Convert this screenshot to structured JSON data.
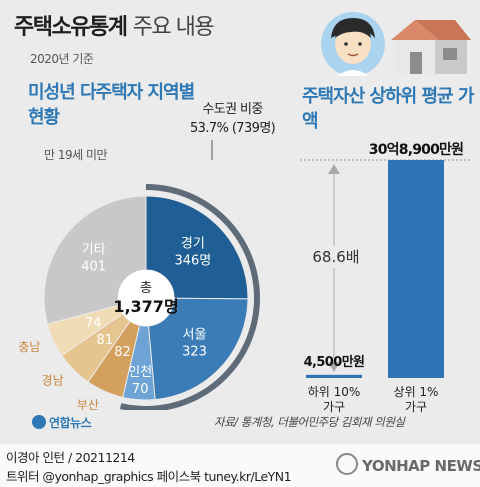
{
  "header": {
    "title_bold": "주택소유통계",
    "title_light": "주요 내용",
    "subtitle": "2020년 기준"
  },
  "left": {
    "heading": "미성년 다주택자 지역별 현황",
    "note": "만 19세 미만",
    "capital_label": "수도권 비중",
    "capital_value": "53.7% (739명)",
    "total_label": "총",
    "total_value": "1,377명"
  },
  "right": {
    "heading": "주택자산 상하위 평균 가액",
    "top_value": "30억8,900만원",
    "bottom_value": "4,500만원",
    "ratio": "68.6배"
  },
  "colors": {
    "accent": "#2d78b5",
    "dark_blue": "#1f5f96",
    "mid_blue": "#3b7cb6",
    "light_blue": "#6da3d5",
    "gray": "#c8c8c8",
    "tan_light": "#f0dcb4",
    "tan_mid": "#e6c490",
    "tan_dark": "#d4a05e",
    "bar": "#2f73b4"
  },
  "chart_data": [
    {
      "type": "pie",
      "title": "미성년 다주택자 지역별 현황",
      "categories": [
        "경기",
        "서울",
        "인천",
        "부산",
        "경남",
        "충남",
        "기타"
      ],
      "values": [
        346,
        323,
        70,
        82,
        81,
        74,
        401
      ],
      "value_labels": [
        "346명",
        "323",
        "70",
        "82",
        "81",
        "74",
        "401"
      ],
      "total": 1377,
      "annotation": "수도권 비중 53.7% (739명)"
    },
    {
      "type": "bar",
      "title": "주택자산 상하위 평균 가액",
      "categories": [
        "하위 10% 가구",
        "상위 1% 가구"
      ],
      "values": [
        4500,
        308900
      ],
      "units": "만원",
      "data_labels": [
        "4,500만원",
        "30억8,900만원"
      ],
      "annotation": "68.6배"
    }
  ],
  "footer": {
    "brand": "연합뉴스",
    "source": "자료/ 통계청, 더불어민주당 김회재 의원실",
    "credit": "이경아 인턴 / 20211214",
    "social": "트위터 @yonhap_graphics  페이스북 tuney.kr/LeYN1",
    "watermark": "YONHAP NEWS"
  }
}
